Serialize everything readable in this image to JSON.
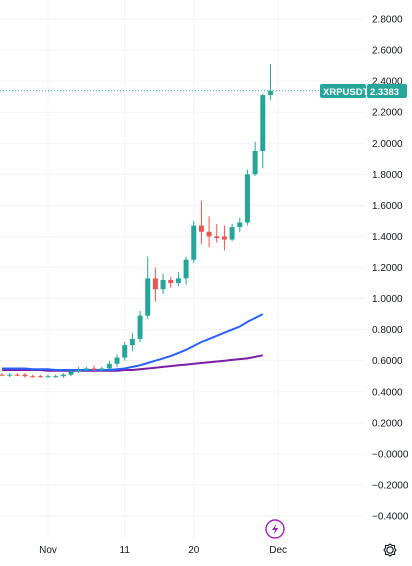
{
  "chart": {
    "symbol_tag": "XRPUSDT",
    "last_price_tag": "2.3383",
    "colors": {
      "up": "#26a69a",
      "down": "#ef5350",
      "ma_blue": "#2962ff",
      "ma_purple": "#7b1fa2",
      "grid": "#f0f3fa",
      "lightning": "#9c27b0"
    }
  },
  "chart_data": {
    "type": "candlestick",
    "instrument": "XRPUSDT",
    "last_price": 2.3383,
    "y_ticks": [
      "2.8000",
      "2.6000",
      "2.4000",
      "2.2000",
      "2.0000",
      "1.8000",
      "1.6000",
      "1.4000",
      "1.2000",
      "1.0000",
      "0.8000",
      "0.6000",
      "0.4000",
      "0.2000",
      "−0.0000",
      "−0.2000",
      "−0.4000"
    ],
    "y_tick_values": [
      2.8,
      2.6,
      2.4,
      2.2,
      2.0,
      1.8,
      1.6,
      1.4,
      1.2,
      1.0,
      0.8,
      0.6,
      0.4,
      0.2,
      0.0,
      -0.2,
      -0.4
    ],
    "ylim": [
      -0.45,
      2.93
    ],
    "x_ticks": [
      {
        "label": "Nov",
        "day": 6
      },
      {
        "label": "11",
        "day": 16
      },
      {
        "label": "20",
        "day": 25
      },
      {
        "label": "Dec",
        "day": 36
      }
    ],
    "candles": [
      {
        "o": 0.51,
        "h": 0.52,
        "l": 0.5,
        "c": 0.505
      },
      {
        "o": 0.505,
        "h": 0.52,
        "l": 0.495,
        "c": 0.51
      },
      {
        "o": 0.51,
        "h": 0.52,
        "l": 0.5,
        "c": 0.505
      },
      {
        "o": 0.51,
        "h": 0.52,
        "l": 0.49,
        "c": 0.5
      },
      {
        "o": 0.5,
        "h": 0.51,
        "l": 0.49,
        "c": 0.495
      },
      {
        "o": 0.5,
        "h": 0.51,
        "l": 0.49,
        "c": 0.495
      },
      {
        "o": 0.495,
        "h": 0.51,
        "l": 0.49,
        "c": 0.5
      },
      {
        "o": 0.5,
        "h": 0.51,
        "l": 0.49,
        "c": 0.5
      },
      {
        "o": 0.5,
        "h": 0.52,
        "l": 0.49,
        "c": 0.51
      },
      {
        "o": 0.51,
        "h": 0.54,
        "l": 0.5,
        "c": 0.53
      },
      {
        "o": 0.53,
        "h": 0.56,
        "l": 0.52,
        "c": 0.54
      },
      {
        "o": 0.54,
        "h": 0.56,
        "l": 0.53,
        "c": 0.55
      },
      {
        "o": 0.55,
        "h": 0.57,
        "l": 0.53,
        "c": 0.54
      },
      {
        "o": 0.54,
        "h": 0.56,
        "l": 0.53,
        "c": 0.55
      },
      {
        "o": 0.55,
        "h": 0.6,
        "l": 0.54,
        "c": 0.58
      },
      {
        "o": 0.58,
        "h": 0.64,
        "l": 0.56,
        "c": 0.62
      },
      {
        "o": 0.62,
        "h": 0.72,
        "l": 0.6,
        "c": 0.7
      },
      {
        "o": 0.7,
        "h": 0.78,
        "l": 0.66,
        "c": 0.74
      },
      {
        "o": 0.74,
        "h": 0.92,
        "l": 0.72,
        "c": 0.89
      },
      {
        "o": 0.89,
        "h": 1.27,
        "l": 0.87,
        "c": 1.13
      },
      {
        "o": 1.13,
        "h": 1.2,
        "l": 0.98,
        "c": 1.06
      },
      {
        "o": 1.06,
        "h": 1.16,
        "l": 1.03,
        "c": 1.12
      },
      {
        "o": 1.12,
        "h": 1.14,
        "l": 1.07,
        "c": 1.1
      },
      {
        "o": 1.1,
        "h": 1.17,
        "l": 1.08,
        "c": 1.13
      },
      {
        "o": 1.13,
        "h": 1.27,
        "l": 1.09,
        "c": 1.25
      },
      {
        "o": 1.25,
        "h": 1.5,
        "l": 1.23,
        "c": 1.47
      },
      {
        "o": 1.47,
        "h": 1.63,
        "l": 1.35,
        "c": 1.43
      },
      {
        "o": 1.43,
        "h": 1.53,
        "l": 1.33,
        "c": 1.4
      },
      {
        "o": 1.4,
        "h": 1.48,
        "l": 1.36,
        "c": 1.39
      },
      {
        "o": 1.4,
        "h": 1.47,
        "l": 1.31,
        "c": 1.38
      },
      {
        "o": 1.38,
        "h": 1.48,
        "l": 1.37,
        "c": 1.46
      },
      {
        "o": 1.46,
        "h": 1.52,
        "l": 1.43,
        "c": 1.49
      },
      {
        "o": 1.49,
        "h": 1.83,
        "l": 1.47,
        "c": 1.8
      },
      {
        "o": 1.8,
        "h": 2.01,
        "l": 1.79,
        "c": 1.95
      },
      {
        "o": 1.95,
        "h": 2.32,
        "l": 1.84,
        "c": 2.31
      },
      {
        "o": 2.31,
        "h": 2.51,
        "l": 2.28,
        "c": 2.3383
      }
    ],
    "ma_blue": [
      0.55,
      0.55,
      0.55,
      0.55,
      0.545,
      0.545,
      0.545,
      0.54,
      0.54,
      0.54,
      0.54,
      0.54,
      0.54,
      0.54,
      0.54,
      0.545,
      0.55,
      0.56,
      0.57,
      0.585,
      0.6,
      0.615,
      0.63,
      0.65,
      0.67,
      0.695,
      0.72,
      0.74,
      0.76,
      0.78,
      0.8,
      0.82,
      0.85,
      0.875,
      0.9
    ],
    "ma_purple": [
      0.54,
      0.54,
      0.54,
      0.54,
      0.54,
      0.54,
      0.535,
      0.535,
      0.535,
      0.535,
      0.535,
      0.535,
      0.535,
      0.535,
      0.535,
      0.535,
      0.54,
      0.54,
      0.545,
      0.55,
      0.555,
      0.56,
      0.565,
      0.57,
      0.575,
      0.58,
      0.585,
      0.59,
      0.595,
      0.6,
      0.605,
      0.61,
      0.615,
      0.625,
      0.635
    ]
  }
}
